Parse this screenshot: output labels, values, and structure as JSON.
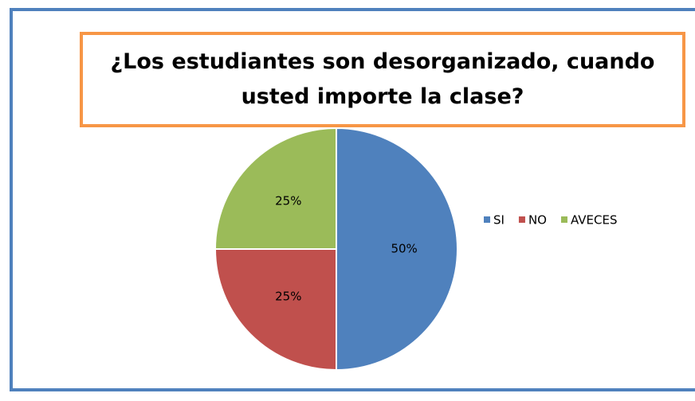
{
  "chart_data": {
    "type": "pie",
    "title": "¿Los estudiantes son desorganizado, cuando usted importe la clase?",
    "categories": [
      "SI",
      "NO",
      "AVECES"
    ],
    "values": [
      50,
      25,
      25
    ],
    "value_labels": [
      "50%",
      "25%",
      "25%"
    ],
    "colors": [
      "#4f81bd",
      "#c0504d",
      "#9bbb59"
    ],
    "legend": "right"
  }
}
